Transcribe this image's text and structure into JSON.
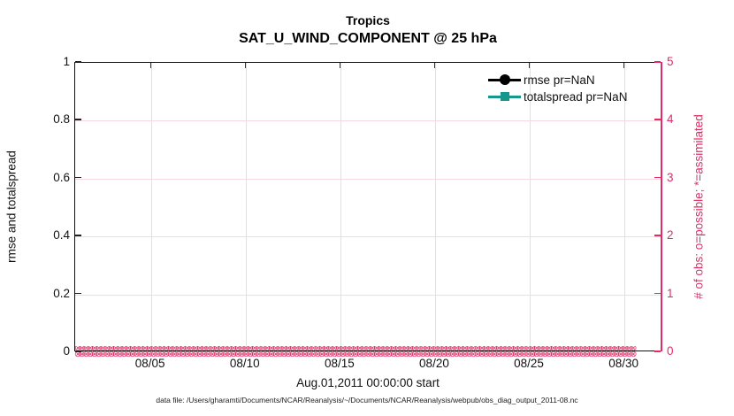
{
  "figure": {
    "suptitle": "Tropics",
    "title": "SAT_U_WIND_COMPONENT @ 25 hPa",
    "footer": "data file: /Users/gharamti/Documents/NCAR/Reanalysis/~/Documents/NCAR/Reanalysis/webpub/obs_diag_output_2011-08.nc"
  },
  "chart_data": {
    "type": "line",
    "suptitle": "Tropics",
    "title": "SAT_U_WIND_COMPONENT @ 25 hPa",
    "xlabel": "Aug.01,2011 00:00:00 start",
    "ylabel_left": "rmse and totalspread",
    "ylabel_right": "# of obs: o=possible; *=assimilated",
    "ylim_left": [
      0,
      1
    ],
    "ylim_right": [
      0,
      5
    ],
    "ytick_values_left": [
      0,
      0.2,
      0.4,
      0.6,
      0.8,
      1
    ],
    "ytick_labels_left": [
      "0",
      "0.2",
      "0.4",
      "0.6",
      "0.8",
      "1"
    ],
    "ytick_values_right": [
      0,
      1,
      2,
      3,
      4,
      5
    ],
    "ytick_labels_right": [
      "0",
      "1",
      "2",
      "3",
      "4",
      "5"
    ],
    "xtick_labels": [
      "08/05",
      "08/10",
      "08/15",
      "08/20",
      "08/25",
      "08/30"
    ],
    "xtick_day_offsets": [
      4,
      9,
      14,
      19,
      24,
      29
    ],
    "x_axis_span_days": 31,
    "grid": "on",
    "legend_position": "top-right-inside",
    "series": [
      {
        "name": "rmse",
        "legend_label": "rmse pr=NaN",
        "color": "#000000",
        "marker": "circle",
        "values": null,
        "note": "all values NaN - no curve drawn"
      },
      {
        "name": "totalspread",
        "legend_label": "totalspread pr=NaN",
        "color": "#17968e",
        "marker": "square",
        "values": null,
        "note": "all values NaN - no curve drawn"
      }
    ],
    "obs_count_series": [
      {
        "name": "possible",
        "marker": "o",
        "value_at_every_time": 0
      },
      {
        "name": "assimilated",
        "marker": "*",
        "value_at_every_time": 0
      }
    ]
  },
  "colors": {
    "axis_right_pink": "#e12d66",
    "grid_pink": "#f6d7e2",
    "grid_gray": "#e0e0e0",
    "teal": "#17968e",
    "black": "#000000"
  },
  "marker_band": {
    "glyph": "⊗",
    "glyphs_per_row": 133,
    "rows": 2
  }
}
